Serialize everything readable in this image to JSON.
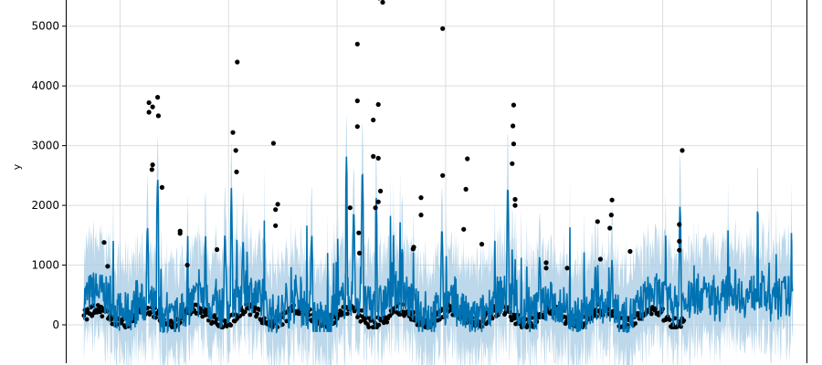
{
  "chart_data": {
    "type": "scatter",
    "title": "",
    "xlabel": "",
    "ylabel": "y",
    "ylim": [
      -700,
      5500
    ],
    "y_ticks": [
      0,
      1000,
      2000,
      3000,
      4000,
      5000
    ],
    "y_tick_labels": [
      "0",
      "1000",
      "2000",
      "3000",
      "4000",
      "5000"
    ],
    "x_range": [
      -2.5,
      100
    ],
    "x_gridlines": [
      5,
      20,
      35,
      50,
      65,
      80,
      95
    ],
    "grid": true,
    "legend": "none",
    "forecast_start_x": 96,
    "colors": {
      "observed": "#000000",
      "forecast": "#0072b2",
      "interval": "#a6cbe3",
      "grid": "#dddddd",
      "axes": "#000000"
    },
    "outliers": [
      [
        2.8,
        1380
      ],
      [
        3.3,
        980
      ],
      [
        9.0,
        3720
      ],
      [
        9.0,
        3560
      ],
      [
        9.5,
        3650
      ],
      [
        10.2,
        3810
      ],
      [
        10.3,
        3500
      ],
      [
        9.5,
        2680
      ],
      [
        9.4,
        2600
      ],
      [
        10.8,
        2300
      ],
      [
        14.3,
        1000
      ],
      [
        21.2,
        4400
      ],
      [
        20.6,
        3220
      ],
      [
        21.0,
        2920
      ],
      [
        21.1,
        2560
      ],
      [
        26.2,
        3040
      ],
      [
        26.8,
        2020
      ],
      [
        26.5,
        1930
      ],
      [
        26.5,
        1660
      ],
      [
        37.8,
        4700
      ],
      [
        37.8,
        3750
      ],
      [
        37.8,
        3320
      ],
      [
        40.0,
        3430
      ],
      [
        40.7,
        3690
      ],
      [
        40.0,
        2820
      ],
      [
        40.7,
        2790
      ],
      [
        41.3,
        5400
      ],
      [
        40.8,
        5470
      ],
      [
        41.0,
        2240
      ],
      [
        40.7,
        2060
      ],
      [
        40.3,
        1960
      ],
      [
        46.6,
        2130
      ],
      [
        46.6,
        1840
      ],
      [
        45.6,
        1300
      ],
      [
        45.5,
        1270
      ],
      [
        49.6,
        4960
      ],
      [
        49.6,
        2500
      ],
      [
        53.0,
        2780
      ],
      [
        52.8,
        2270
      ],
      [
        52.5,
        1600
      ],
      [
        55.0,
        1350
      ],
      [
        59.4,
        3680
      ],
      [
        59.3,
        3330
      ],
      [
        59.4,
        3030
      ],
      [
        59.2,
        2700
      ],
      [
        59.6,
        2100
      ],
      [
        59.6,
        2000
      ],
      [
        63.9,
        1040
      ],
      [
        63.9,
        950
      ],
      [
        66.8,
        950
      ],
      [
        71.0,
        1730
      ],
      [
        73.0,
        2090
      ],
      [
        72.9,
        1840
      ],
      [
        72.7,
        1620
      ],
      [
        71.4,
        1100
      ],
      [
        75.5,
        1230
      ],
      [
        82.7,
        2920
      ],
      [
        82.3,
        1680
      ],
      [
        82.3,
        1400
      ],
      [
        82.3,
        1250
      ],
      [
        36.8,
        1960
      ],
      [
        38.0,
        1540
      ],
      [
        38.1,
        1200
      ],
      [
        13.3,
        1530
      ],
      [
        13.3,
        1570
      ],
      [
        18.4,
        1260
      ]
    ]
  }
}
